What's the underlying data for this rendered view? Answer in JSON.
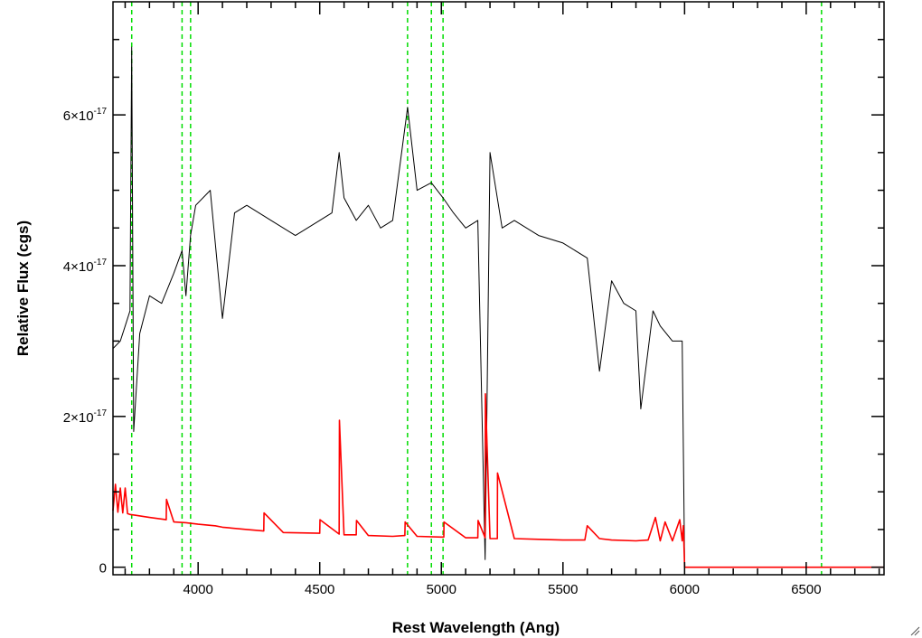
{
  "chart_data": {
    "type": "line",
    "title": "",
    "xlabel": "Rest Wavelength (Ang)",
    "ylabel": "Relative Flux (cgs)",
    "xlim": [
      3650,
      6820
    ],
    "ylim": [
      -1e-18,
      7.5e-17
    ],
    "x_ticks": [
      4000,
      4500,
      5000,
      5500,
      6000,
      6500
    ],
    "y_ticks": [
      {
        "value": 0,
        "mantissa": "0",
        "exponent": ""
      },
      {
        "value": 2e-17,
        "mantissa": "2×10",
        "exponent": "-17"
      },
      {
        "value": 4e-17,
        "mantissa": "4×10",
        "exponent": "-17"
      },
      {
        "value": 6e-17,
        "mantissa": "6×10",
        "exponent": "-17"
      }
    ],
    "grid": false,
    "reference_lines": {
      "color": "#00dd00",
      "style": "dashed",
      "x": [
        3727,
        3934,
        3969,
        4861,
        4959,
        5007,
        6563
      ]
    },
    "series": [
      {
        "color": "#000000",
        "x": [
          3650,
          3680,
          3700,
          3720,
          3727,
          3735,
          3760,
          3800,
          3850,
          3900,
          3934,
          3950,
          3969,
          3990,
          4050,
          4100,
          4150,
          4200,
          4300,
          4400,
          4500,
          4550,
          4580,
          4600,
          4650,
          4700,
          4750,
          4800,
          4861,
          4900,
          4959,
          5007,
          5050,
          5100,
          5150,
          5180,
          5200,
          5250,
          5300,
          5400,
          5500,
          5600,
          5650,
          5700,
          5750,
          5800,
          5820,
          5870,
          5900,
          5950,
          5990,
          6000,
          6820
        ],
        "y": [
          2.9e-17,
          3e-17,
          3.2e-17,
          3.4e-17,
          6.9e-17,
          1.8e-17,
          3.1e-17,
          3.6e-17,
          3.5e-17,
          3.9e-17,
          4.2e-17,
          3.6e-17,
          4.4e-17,
          4.8e-17,
          5e-17,
          3.3e-17,
          4.7e-17,
          4.8e-17,
          4.6e-17,
          4.4e-17,
          4.6e-17,
          4.7e-17,
          5.5e-17,
          4.9e-17,
          4.6e-17,
          4.8e-17,
          4.5e-17,
          4.6e-17,
          6.1e-17,
          5e-17,
          5.1e-17,
          4.9e-17,
          4.7e-17,
          4.5e-17,
          4.6e-17,
          1e-18,
          5.5e-17,
          4.5e-17,
          4.6e-17,
          4.4e-17,
          4.3e-17,
          4.1e-17,
          2.6e-17,
          3.8e-17,
          3.5e-17,
          3.4e-17,
          2.1e-17,
          3.4e-17,
          3.2e-17,
          3e-17,
          3e-17,
          0,
          0
        ]
      },
      {
        "color": "#ff0000",
        "x": [
          3650,
          3660,
          3670,
          3680,
          3690,
          3700,
          3710,
          3720,
          3740,
          3800,
          3869,
          3870,
          3900,
          3950,
          4000,
          4069,
          4070,
          4100,
          4200,
          4270,
          4271,
          4350,
          4500,
          4501,
          4580,
          4581,
          4600,
          4650,
          4651,
          4700,
          4800,
          4850,
          4851,
          4900,
          5000,
          5010,
          5011,
          5100,
          5150,
          5151,
          5180,
          5181,
          5200,
          5230,
          5231,
          5300,
          5400,
          5500,
          5590,
          5600,
          5650,
          5700,
          5800,
          5850,
          5880,
          5900,
          5920,
          5950,
          5980,
          5990,
          5995,
          6000,
          6820
        ],
        "y": [
          7.5e-18,
          1.1e-17,
          7.3e-18,
          1.05e-17,
          7.2e-18,
          1.05e-17,
          7.1e-18,
          7e-18,
          6.9e-18,
          6.6e-18,
          6.3e-18,
          9e-18,
          6e-18,
          5.9e-18,
          5.7e-18,
          5.5e-18,
          5.5e-18,
          5.3e-18,
          5e-18,
          4.8e-18,
          7.2e-18,
          4.6e-18,
          4.5e-18,
          6.3e-18,
          4.4e-18,
          1.95e-17,
          4.3e-18,
          4.3e-18,
          6.2e-18,
          4.2e-18,
          4.1e-18,
          4.2e-18,
          6e-18,
          4.1e-18,
          4e-18,
          4e-18,
          6e-18,
          3.9e-18,
          3.9e-18,
          6.2e-18,
          3.9e-18,
          2.3e-17,
          3.8e-18,
          3.8e-18,
          1.25e-17,
          3.8e-18,
          3.7e-18,
          3.6e-18,
          3.6e-18,
          5.5e-18,
          3.8e-18,
          3.6e-18,
          3.5e-18,
          3.6e-18,
          6.6e-18,
          3.5e-18,
          6e-18,
          3.5e-18,
          6.3e-18,
          3.5e-18,
          5.5e-18,
          0,
          0
        ]
      }
    ]
  }
}
